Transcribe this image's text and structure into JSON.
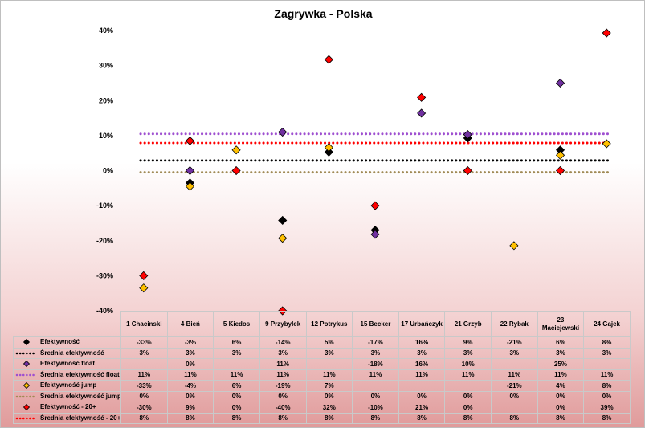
{
  "chart_data": {
    "type": "scatter",
    "title": "Zagrywka - Polska",
    "categories": [
      "1 Chacinski",
      "4 Bień",
      "5 Kiedos",
      "9 Przybylek",
      "12 Potrykus",
      "15 Becker",
      "17 Urbańczyk",
      "21 Grzyb",
      "22 Rybak",
      "23 Maciejewski",
      "24 Gajek"
    ],
    "ylim": [
      -40,
      40
    ],
    "ytick_step": 10,
    "ytick_format": "percent",
    "grid": false,
    "series": [
      {
        "name": "Efektywność",
        "kind": "marker",
        "color": "#000000",
        "values": [
          -33,
          -3,
          6,
          -14,
          5,
          -17,
          16,
          9,
          -21,
          6,
          8
        ],
        "plot_values": [
          null,
          -3.5,
          null,
          -14.2,
          5.3,
          -17,
          null,
          9.3,
          null,
          5.9,
          null
        ],
        "labels": [
          "-33%",
          "-3%",
          "6%",
          "-14%",
          "5%",
          "-17%",
          "16%",
          "9%",
          "-21%",
          "6%",
          "8%"
        ]
      },
      {
        "name": "Średnia efektywność",
        "kind": "line",
        "color": "#000000",
        "values": [
          3,
          3,
          3,
          3,
          3,
          3,
          3,
          3,
          3,
          3,
          3
        ],
        "plot_level": 2.9,
        "labels": [
          "3%",
          "3%",
          "3%",
          "3%",
          "3%",
          "3%",
          "3%",
          "3%",
          "3%",
          "3%",
          "3%"
        ]
      },
      {
        "name": "Efektywność float",
        "kind": "marker",
        "color": "#7030a0",
        "values": [
          null,
          0,
          null,
          11,
          null,
          -18,
          16,
          10,
          null,
          25,
          null
        ],
        "plot_values": [
          null,
          0,
          null,
          11,
          null,
          -18.2,
          16.4,
          10.3,
          null,
          25,
          null
        ],
        "labels": [
          "",
          "0%",
          "",
          "11%",
          "",
          "-18%",
          "16%",
          "10%",
          "",
          "25%",
          ""
        ]
      },
      {
        "name": "Średnia efektywność float",
        "kind": "line",
        "color": "#9e4fd0",
        "values": [
          11,
          11,
          11,
          11,
          11,
          11,
          11,
          11,
          11,
          11,
          11
        ],
        "plot_level": 10.5,
        "labels": [
          "11%",
          "11%",
          "11%",
          "11%",
          "11%",
          "11%",
          "11%",
          "11%",
          "11%",
          "11%",
          "11%"
        ]
      },
      {
        "name": "Efektywność jump",
        "kind": "marker",
        "color": "#ffc000",
        "values": [
          -33,
          -4,
          6,
          -19,
          7,
          null,
          null,
          null,
          -21,
          4,
          8
        ],
        "plot_values": [
          -33.5,
          -4.5,
          5.9,
          -19.3,
          6.6,
          null,
          null,
          null,
          -21.4,
          4.4,
          7.7
        ],
        "labels": [
          "-33%",
          "-4%",
          "6%",
          "-19%",
          "7%",
          "",
          "",
          "",
          "-21%",
          "4%",
          "8%"
        ]
      },
      {
        "name": "Średnia efektywność jump",
        "kind": "line",
        "color": "#a08a55",
        "values": [
          0,
          0,
          0,
          0,
          0,
          0,
          0,
          0,
          0,
          0,
          0
        ],
        "plot_level": -0.5,
        "labels": [
          "0%",
          "0%",
          "0%",
          "0%",
          "0%",
          "0%",
          "0%",
          "0%",
          "0%",
          "0%",
          "0%"
        ]
      },
      {
        "name": "Efektywność - 20+",
        "kind": "marker",
        "color": "#ff0000",
        "values": [
          -30,
          9,
          0,
          -40,
          32,
          -10,
          21,
          0,
          null,
          0,
          39
        ],
        "plot_values": [
          -30,
          8.5,
          0,
          -40,
          31.7,
          -10,
          20.9,
          0,
          null,
          0,
          39.3
        ],
        "labels": [
          "-30%",
          "9%",
          "0%",
          "-40%",
          "32%",
          "-10%",
          "21%",
          "0%",
          "",
          "0%",
          "39%"
        ]
      },
      {
        "name": "Średnia efektywność - 20+",
        "kind": "line",
        "color": "#ff0000",
        "values": [
          8,
          8,
          8,
          8,
          8,
          8,
          8,
          8,
          8,
          8,
          8
        ],
        "plot_level": 7.9,
        "labels": [
          "8%",
          "8%",
          "8%",
          "8%",
          "8%",
          "8%",
          "8%",
          "8%",
          "8%",
          "8%",
          "8%"
        ]
      }
    ]
  }
}
